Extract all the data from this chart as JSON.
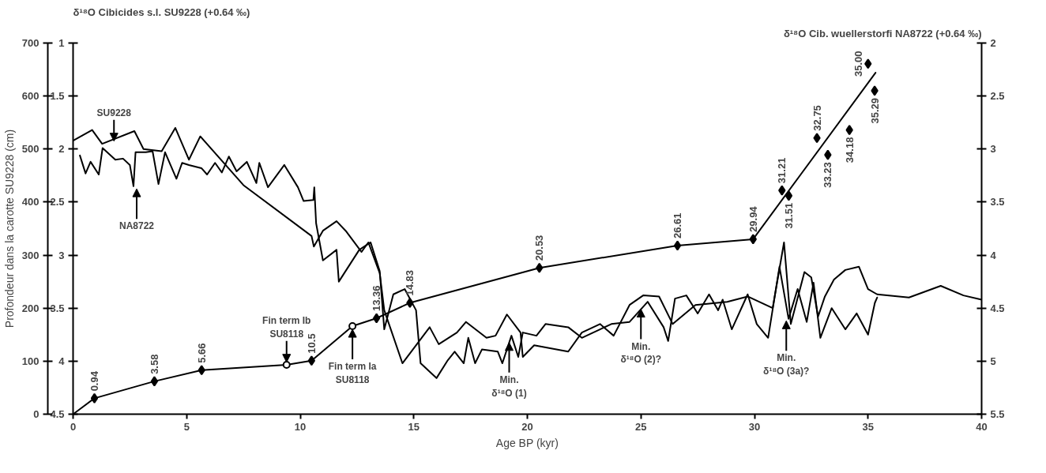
{
  "chart_data": {
    "type": "line",
    "xlabel": "Age BP (kyr)",
    "ylabel": "Profondeur dans la carotte SU9228 (cm)",
    "y2label": "δ¹⁸O Cib. wuellerstorfi NA8722 (+0.64 ‰)",
    "y3label": "δ¹⁸O Cibicides s.l. SU9228 (+0.64 ‰)",
    "xlim": [
      0,
      40
    ],
    "xticks": [
      0,
      5,
      10,
      15,
      20,
      25,
      30,
      35,
      40
    ],
    "ylim": [
      0,
      700
    ],
    "yticks": [
      0,
      100,
      200,
      300,
      400,
      500,
      600,
      700
    ],
    "y2lim": [
      5.5,
      2
    ],
    "y2ticks": [
      2,
      2.5,
      3,
      3.5,
      4,
      4.5,
      5,
      5.5
    ],
    "y3lim": [
      4.5,
      1
    ],
    "y3ticks": [
      1,
      1.5,
      2,
      2.5,
      3,
      3.5,
      4,
      4.5
    ],
    "series": [
      {
        "axis": "y",
        "color": "#000000",
        "marker": "none",
        "x": [
          0,
          0.94,
          3.58,
          5.66,
          9.4,
          10.5,
          12.3,
          13.36,
          14.83,
          20.53,
          26.61,
          29.94,
          35.33
        ],
        "values": [
          0,
          30,
          62,
          83,
          93,
          101,
          166,
          181,
          210,
          276,
          318,
          330,
          644
        ]
      },
      {
        "type": "scatter",
        "axis": "y",
        "color": "#000000",
        "marker": "diamond",
        "x": [
          0.94,
          3.58,
          5.66,
          10.5,
          13.36,
          14.83,
          20.53,
          26.61,
          29.94,
          31.21,
          31.51,
          32.75,
          33.23,
          34.18,
          35.0,
          35.29
        ],
        "values": [
          30,
          62,
          83,
          101,
          181,
          210,
          276,
          318,
          330,
          422,
          412,
          521,
          489,
          536,
          661,
          610
        ]
      },
      {
        "type": "scatter",
        "axis": "y",
        "color": "#000000",
        "marker": "circle",
        "x": [
          9.4,
          12.3
        ],
        "values": [
          93,
          166
        ]
      },
      {
        "axis": "y3",
        "color": "#000000",
        "x": [
          0,
          0.84,
          1.28,
          2.7,
          3.1,
          3.9,
          4.5,
          5.1,
          5.6,
          7.5,
          10.5,
          10.6,
          11.0,
          11.6,
          12.0,
          12.7,
          13.0,
          13.5,
          13.7,
          14.5,
          15.7,
          16.1,
          16.9,
          17.3,
          18.2,
          18.6,
          19.1,
          19.7,
          19.8,
          20.3,
          21.8,
          22.4,
          23.2,
          23.8,
          24.5,
          25.1,
          25.8,
          26.4,
          27.4,
          28.8,
          29.7,
          30.8,
          31.3,
          31.6,
          32.2,
          32.5,
          32.8,
          33.1,
          33.5,
          34.0,
          34.6,
          35.0,
          35.4,
          36.8,
          38.2,
          39.2,
          40
        ],
        "values": [
          1.92,
          1.82,
          1.95,
          1.83,
          2.0,
          2.02,
          1.8,
          2.1,
          1.88,
          2.34,
          2.82,
          2.92,
          2.77,
          2.68,
          2.77,
          2.97,
          2.88,
          3.17,
          3.52,
          4.02,
          3.68,
          3.84,
          3.73,
          3.63,
          3.78,
          3.76,
          3.56,
          3.73,
          3.96,
          3.85,
          3.91,
          3.73,
          3.65,
          3.76,
          3.47,
          3.38,
          3.39,
          3.65,
          3.47,
          3.44,
          3.39,
          3.5,
          2.88,
          3.65,
          3.16,
          3.21,
          3.58,
          3.39,
          3.23,
          3.14,
          3.11,
          3.32,
          3.37,
          3.4,
          3.29,
          3.38,
          3.42
        ]
      },
      {
        "axis": "y2",
        "color": "#000000",
        "x": [
          0.3,
          0.55,
          0.77,
          1.13,
          1.3,
          1.86,
          2.2,
          2.5,
          2.66,
          2.75,
          3.2,
          3.5,
          3.76,
          4.05,
          4.55,
          4.8,
          5.1,
          5.65,
          5.9,
          6.25,
          6.55,
          6.86,
          7.2,
          7.65,
          8.07,
          8.2,
          8.58,
          9.3,
          9.9,
          10.15,
          10.58,
          10.62,
          10.7,
          11.0,
          11.6,
          11.7,
          12.6,
          13.1,
          13.5,
          13.7,
          14.1,
          14.6,
          15.1,
          15.3,
          16.0,
          16.5,
          16.8,
          17.2,
          17.4,
          17.7,
          18.0,
          18.7,
          18.9,
          19.3,
          19.6,
          19.8,
          20.4,
          20.8,
          21.8,
          22.4,
          23.2,
          23.7,
          24.5,
          25.3,
          26.0,
          26.2,
          26.5,
          27.0,
          27.5,
          28.0,
          28.4,
          28.6,
          29.0,
          29.7,
          30.1,
          30.6,
          31.1,
          31.5,
          31.9,
          32.3,
          32.6,
          32.9,
          33.4,
          34.0,
          34.5,
          35.0,
          35.3,
          35.4
        ],
        "values": [
          3.06,
          3.23,
          3.12,
          3.24,
          2.99,
          3.1,
          3.09,
          3.15,
          3.35,
          3.03,
          3.03,
          3.02,
          3.33,
          3.03,
          3.28,
          3.13,
          3.15,
          3.18,
          3.24,
          3.13,
          3.22,
          3.07,
          3.21,
          3.12,
          3.32,
          3.13,
          3.36,
          3.15,
          3.36,
          3.49,
          3.48,
          3.36,
          3.7,
          4.05,
          3.95,
          4.25,
          3.95,
          3.88,
          4.15,
          4.7,
          4.37,
          4.32,
          4.52,
          5.02,
          5.16,
          4.99,
          4.91,
          5.02,
          4.78,
          5.02,
          4.89,
          4.91,
          5.02,
          4.76,
          4.96,
          4.73,
          4.76,
          4.65,
          4.68,
          4.78,
          4.7,
          4.65,
          4.63,
          4.44,
          4.68,
          4.81,
          4.41,
          4.38,
          4.55,
          4.37,
          4.52,
          4.42,
          4.7,
          4.37,
          4.65,
          4.78,
          4.11,
          4.6,
          4.32,
          4.63,
          4.26,
          4.78,
          4.5,
          4.7,
          4.55,
          4.75,
          4.45,
          4.4
        ]
      }
    ],
    "annotations": [
      {
        "text": "SU9228",
        "x": 1.8,
        "y": 515
      },
      {
        "text": "NA8722",
        "x": 2.8,
        "y": 425
      },
      {
        "text": "Fin term Ib\nSU8118",
        "x": 9.4,
        "y": 98
      },
      {
        "text": "Fin term Ia\nSU8118",
        "x": 12.3,
        "y": 160
      },
      {
        "text": "Min.\nδ¹⁸O (1)",
        "x": 19.2,
        "y": 135
      },
      {
        "text": "Min.\nδ¹⁸O (2)?",
        "x": 25.0,
        "y": 198
      },
      {
        "text": "Min.\nδ¹⁸O (3a)?",
        "x": 31.4,
        "y": 176
      },
      {
        "text": "0.94",
        "x": 0.94,
        "y": 30
      },
      {
        "text": "3.58",
        "x": 3.58,
        "y": 62
      },
      {
        "text": "5.66",
        "x": 5.66,
        "y": 83
      },
      {
        "text": "10.5",
        "x": 10.5,
        "y": 101
      },
      {
        "text": "13.36",
        "x": 13.36,
        "y": 181
      },
      {
        "text": "14.83",
        "x": 14.83,
        "y": 210
      },
      {
        "text": "20.53",
        "x": 20.53,
        "y": 276
      },
      {
        "text": "26.61",
        "x": 26.61,
        "y": 318
      },
      {
        "text": "29.94",
        "x": 29.94,
        "y": 330
      },
      {
        "text": "31.21",
        "x": 31.21,
        "y": 422
      },
      {
        "text": "31.51",
        "x": 31.51,
        "y": 412
      },
      {
        "text": "32.75",
        "x": 32.75,
        "y": 521
      },
      {
        "text": "33.23",
        "x": 33.23,
        "y": 489
      },
      {
        "text": "34.18",
        "x": 34.18,
        "y": 536
      },
      {
        "text": "35.00",
        "x": 35.0,
        "y": 661
      },
      {
        "text": "35.29",
        "x": 35.29,
        "y": 610
      }
    ]
  }
}
